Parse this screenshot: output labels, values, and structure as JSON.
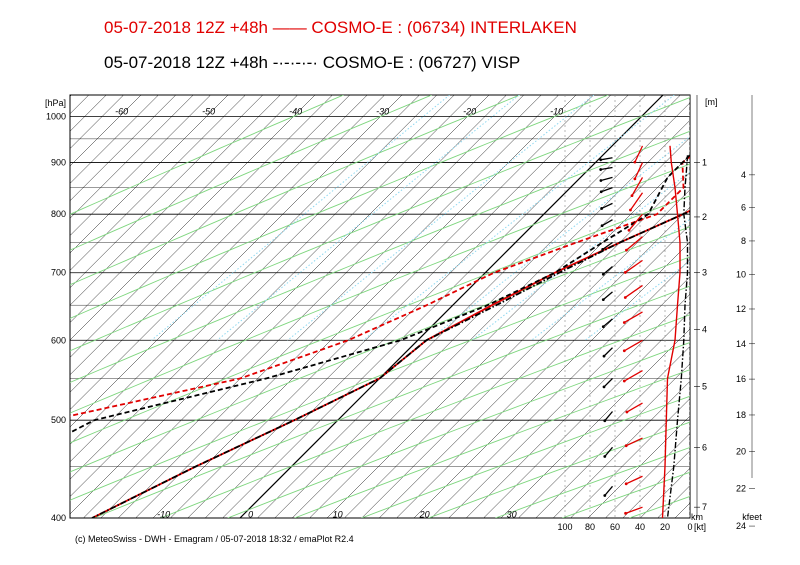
{
  "titles": {
    "line1": "05-07-2018  12Z +48h —— COSMO-E : (06734)  INTERLAKEN",
    "line2": "05-07-2018  12Z +48h -·-·-·-· COSMO-E : (06727)  VISP"
  },
  "footer": "(c) MeteoSwiss - DWH - Emagram / 05-07-2018  18:32 / emaPlot R2.4",
  "colors": {
    "interlaken": "#e00000",
    "visp": "#000000",
    "dry_adiabat": "#7fd67f",
    "mixing_ratio": "#8fd8f0",
    "isotherm": "#000000"
  },
  "chart_data": {
    "type": "line",
    "chart_kind": "emagram (skew-T log-p)",
    "y_axis": {
      "label": "[hPa]",
      "scale": "log",
      "range": [
        1050,
        400
      ],
      "ticks": [
        400,
        500,
        600,
        700,
        800,
        900,
        1000
      ]
    },
    "isotherm_labels": [
      -60,
      -50,
      -40,
      -30,
      -20,
      -10,
      0,
      10,
      20,
      30
    ],
    "wind_speed_axis": {
      "label": "[kt]",
      "ticks": [
        100,
        80,
        60,
        40,
        20,
        0
      ]
    },
    "height_m_axis": {
      "label": "[m]",
      "unit_label": "km",
      "ticks": [
        1,
        2,
        3,
        4,
        5,
        6,
        7
      ]
    },
    "height_kfeet_axis": {
      "label": "kfeet",
      "ticks": [
        4,
        6,
        8,
        10,
        12,
        14,
        16,
        18,
        20,
        22,
        24
      ]
    },
    "series": [
      {
        "name": "INTERLAKEN",
        "station": "06734",
        "variable": "temperature",
        "color": "#e00000",
        "style": "solid",
        "points": [
          [
            935,
            24
          ],
          [
            900,
            22
          ],
          [
            850,
            19
          ],
          [
            800,
            16
          ],
          [
            750,
            12
          ],
          [
            700,
            8
          ],
          [
            650,
            4.5
          ],
          [
            600,
            1
          ],
          [
            550,
            0
          ],
          [
            500,
            -5
          ],
          [
            450,
            -11
          ],
          [
            400,
            -17
          ]
        ]
      },
      {
        "name": "INTERLAKEN",
        "station": "06734",
        "variable": "dewpoint",
        "color": "#e00000",
        "style": "dashed",
        "points": [
          [
            935,
            10.5
          ],
          [
            900,
            10
          ],
          [
            850,
            13
          ],
          [
            800,
            13
          ],
          [
            750,
            7
          ],
          [
            700,
            1
          ],
          [
            650,
            -3
          ],
          [
            600,
            -8
          ],
          [
            550,
            -16
          ],
          [
            500,
            -33
          ],
          [
            450,
            -34
          ],
          [
            400,
            -29
          ]
        ]
      },
      {
        "name": "VISP",
        "station": "06727",
        "variable": "temperature",
        "color": "#000000",
        "style": "dashdot",
        "points": [
          [
            915,
            27
          ],
          [
            880,
            24
          ],
          [
            850,
            21
          ],
          [
            800,
            16
          ],
          [
            750,
            12
          ],
          [
            700,
            8.5
          ],
          [
            650,
            5
          ],
          [
            600,
            1
          ],
          [
            550,
            0
          ],
          [
            500,
            -5
          ],
          [
            450,
            -11
          ],
          [
            400,
            -17
          ]
        ]
      },
      {
        "name": "VISP",
        "station": "06727",
        "variable": "dewpoint",
        "color": "#000000",
        "style": "dashed",
        "points": [
          [
            915,
            10
          ],
          [
            870,
            10
          ],
          [
            800,
            12
          ],
          [
            750,
            10
          ],
          [
            700,
            8
          ],
          [
            650,
            4
          ],
          [
            600,
            -2
          ],
          [
            550,
            -13
          ],
          [
            500,
            -28
          ],
          [
            450,
            -33
          ],
          [
            400,
            -29
          ]
        ]
      }
    ],
    "wind_profiles": [
      {
        "name": "INTERLAKEN",
        "color": "#e00000",
        "x_kt": 38,
        "barbs": [
          [
            935,
            205,
            20
          ],
          [
            900,
            205,
            20
          ],
          [
            870,
            210,
            25
          ],
          [
            840,
            215,
            25
          ],
          [
            800,
            220,
            25
          ],
          [
            760,
            230,
            25
          ],
          [
            720,
            235,
            25
          ],
          [
            680,
            235,
            25
          ],
          [
            640,
            240,
            25
          ],
          [
            600,
            240,
            25
          ],
          [
            560,
            240,
            25
          ],
          [
            520,
            240,
            20
          ],
          [
            480,
            245,
            20
          ],
          [
            440,
            245,
            20
          ],
          [
            410,
            250,
            20
          ]
        ]
      },
      {
        "name": "VISP",
        "color": "#000000",
        "x_kt": 62,
        "barbs": [
          [
            910,
            260,
            10
          ],
          [
            890,
            260,
            10
          ],
          [
            870,
            255,
            10
          ],
          [
            850,
            250,
            10
          ],
          [
            820,
            245,
            10
          ],
          [
            790,
            240,
            10
          ],
          [
            750,
            235,
            10
          ],
          [
            710,
            230,
            10
          ],
          [
            670,
            230,
            10
          ],
          [
            630,
            230,
            10
          ],
          [
            590,
            225,
            10
          ],
          [
            550,
            225,
            10
          ],
          [
            510,
            220,
            10
          ],
          [
            470,
            220,
            10
          ],
          [
            430,
            220,
            10
          ],
          [
            400,
            225,
            10
          ]
        ]
      }
    ],
    "wind_speed_traces": [
      {
        "name": "INTERLAKEN",
        "color": "#e00000",
        "style": "solid",
        "points": [
          [
            935,
            16
          ],
          [
            900,
            15
          ],
          [
            850,
            12
          ],
          [
            800,
            10
          ],
          [
            750,
            8
          ],
          [
            700,
            8
          ],
          [
            650,
            10
          ],
          [
            600,
            12
          ],
          [
            550,
            18
          ],
          [
            500,
            19
          ],
          [
            450,
            20
          ],
          [
            400,
            22
          ]
        ]
      },
      {
        "name": "VISP",
        "color": "#000000",
        "style": "dashdot",
        "points": [
          [
            915,
            2
          ],
          [
            880,
            3
          ],
          [
            850,
            4
          ],
          [
            800,
            5
          ],
          [
            750,
            2
          ],
          [
            700,
            2
          ],
          [
            650,
            4
          ],
          [
            600,
            5
          ],
          [
            550,
            7
          ],
          [
            500,
            10
          ],
          [
            450,
            13
          ],
          [
            400,
            18
          ]
        ]
      }
    ]
  }
}
